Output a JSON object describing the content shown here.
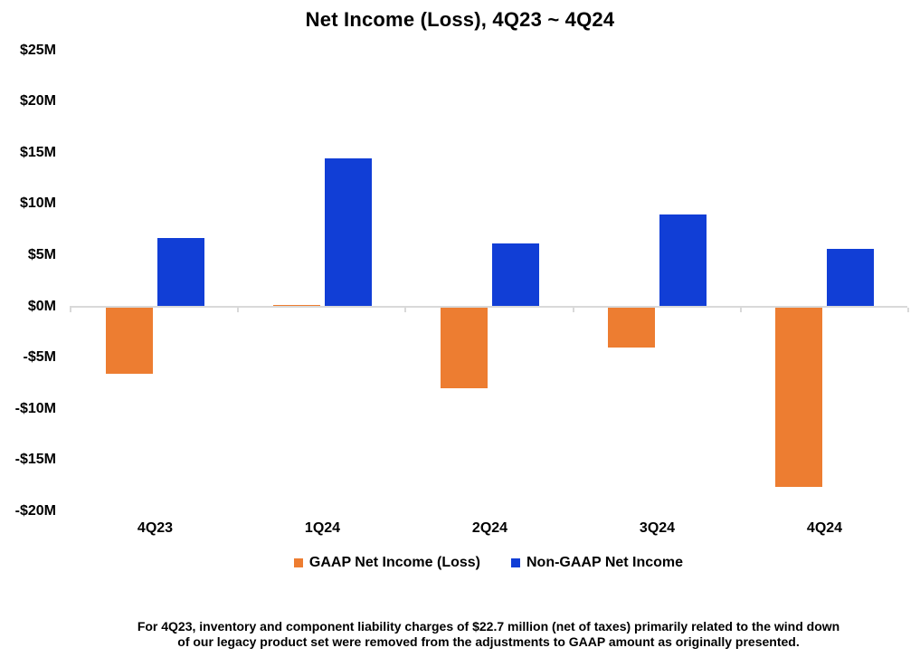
{
  "title": "Net Income (Loss), 4Q23 ~ 4Q24",
  "chart_data": {
    "type": "bar",
    "categories": [
      "4Q23",
      "1Q24",
      "2Q24",
      "3Q24",
      "4Q24"
    ],
    "series": [
      {
        "name": "GAAP Net Income (Loss)",
        "color": "#ED7D31",
        "values": [
          -6.6,
          0.1,
          -8.0,
          -4.0,
          -17.6
        ]
      },
      {
        "name": "Non-GAAP Net Income",
        "color": "#113ED6",
        "values": [
          6.7,
          14.4,
          6.1,
          9.0,
          5.6
        ]
      }
    ],
    "title": "Net Income (Loss), 4Q23 ~ 4Q24",
    "xlabel": "",
    "ylabel": "",
    "ylim": [
      -20,
      25
    ],
    "ytick_step": 5,
    "ytick_labels": [
      "$25M",
      "$20M",
      "$15M",
      "$10M",
      "$5M",
      "$0M",
      "-$5M",
      "-$10M",
      "-$15M",
      "-$20M"
    ],
    "grid": false,
    "legend_position": "bottom"
  },
  "legend": {
    "items": [
      {
        "label": "GAAP Net Income (Loss)",
        "color": "#ED7D31"
      },
      {
        "label": "Non-GAAP Net Income",
        "color": "#113ED6"
      }
    ]
  },
  "footnote": {
    "line1": "For 4Q23, inventory and component liability charges of $22.7 million (net of taxes) primarily related to the wind down",
    "line2": "of our legacy product set were removed from the adjustments to GAAP amount as originally presented."
  },
  "colors": {
    "gaap_orange": "#ED7D31",
    "non_gaap_blue": "#113ED6",
    "axis_line": "#D9D9D9",
    "text": "#000000"
  }
}
